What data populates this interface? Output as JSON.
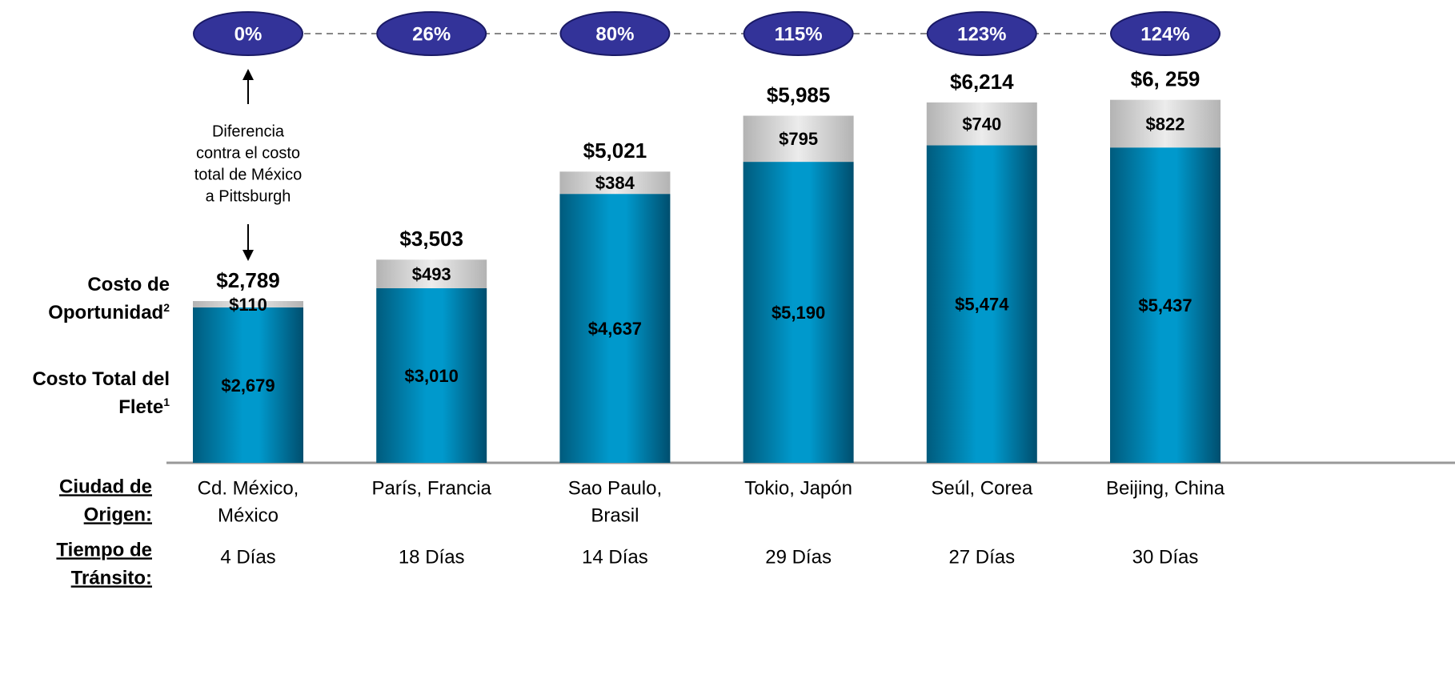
{
  "chart_data": {
    "type": "stacked_bar",
    "categories": [
      [
        "Cd. México,",
        "México"
      ],
      [
        "París, Francia"
      ],
      [
        "Sao Paulo,",
        "Brasil"
      ],
      [
        "Tokio, Japón"
      ],
      [
        "Seúl, Corea"
      ],
      [
        "Beijing, China"
      ]
    ],
    "series": [
      {
        "name": "Costo Total del Flete",
        "note": "1",
        "color": "#0099cc",
        "values": [
          2679,
          3010,
          4637,
          5190,
          5474,
          5437
        ],
        "value_labels": [
          "$2,679",
          "$3,010",
          "$4,637",
          "$5,190",
          "$5,474",
          "$5,437"
        ]
      },
      {
        "name": "Costo de Oportunidad",
        "note": "2",
        "color": "#d0d0d0",
        "values": [
          110,
          493,
          384,
          795,
          740,
          822
        ],
        "value_labels": [
          "$110",
          "$493",
          "$384",
          "$795",
          "$740",
          "$822"
        ]
      }
    ],
    "totals": {
      "values": [
        2789,
        3503,
        5021,
        5985,
        6214,
        6259
      ],
      "value_labels": [
        "$2,789",
        "$3,503",
        "$5,021",
        "$5,985",
        "$6,214",
        "$6, 259"
      ]
    },
    "difference": {
      "values": [
        0,
        26,
        80,
        115,
        123,
        124
      ],
      "value_labels": [
        "0%",
        "26%",
        "80%",
        "115%",
        "123%",
        "124%"
      ],
      "color": "#333399"
    },
    "annotation": [
      "Diferencia",
      "contra el costo",
      "total de México",
      "a Pittsburgh"
    ],
    "row_headers": {
      "origin": [
        "Ciudad de",
        "Origen:"
      ],
      "transit": [
        "Tiempo de",
        "Tránsito:"
      ]
    },
    "transit_times": [
      "4 Días",
      "18 Días",
      "14 Días",
      "29 Días",
      "27 Días",
      "30 Días"
    ],
    "ylim": [
      0,
      7000
    ]
  }
}
